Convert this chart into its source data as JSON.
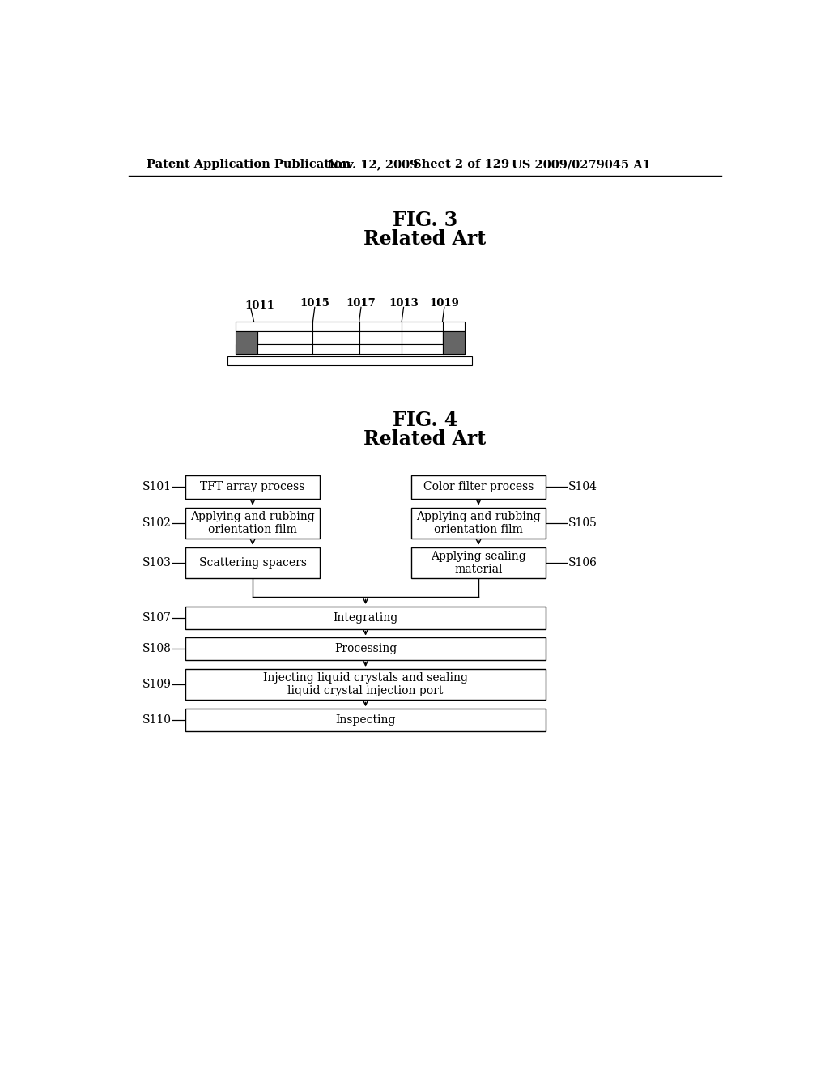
{
  "bg_color": "#ffffff",
  "header_text": "Patent Application Publication",
  "header_date": "Nov. 12, 2009",
  "header_sheet": "Sheet 2 of 129",
  "header_patent": "US 2009/0279045 A1",
  "fig3_title1": "FIG. 3",
  "fig3_title2": "Related Art",
  "fig4_title1": "FIG. 4",
  "fig4_title2": "Related Art",
  "fig4_left_boxes": [
    "TFT array process",
    "Applying and rubbing\norientation film",
    "Scattering spacers",
    "Integrating",
    "Processing",
    "Injecting liquid crystals and sealing\nliquid crystal injection port",
    "Inspecting"
  ],
  "fig4_right_boxes": [
    "Color filter process",
    "Applying and rubbing\norientation film",
    "Applying sealing\nmaterial"
  ],
  "fig4_left_labels": [
    "S101",
    "S102",
    "S103",
    "S107",
    "S108",
    "S109",
    "S110"
  ],
  "fig4_right_labels": [
    "S104",
    "S105",
    "S106"
  ]
}
